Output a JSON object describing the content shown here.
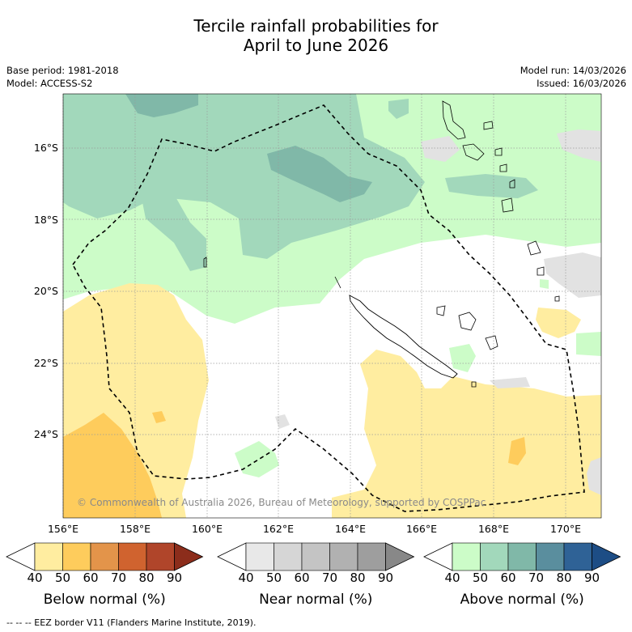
{
  "title": {
    "line1": "Tercile rainfall probabilities for",
    "line2": "April to June 2026"
  },
  "meta": {
    "base_period": "Base period: 1981-2018",
    "model": "Model: ACCESS-S2",
    "model_run": "Model run: 14/03/2026",
    "issued": "Issued: 16/03/2026"
  },
  "map": {
    "lat_labels": [
      "16°S",
      "18°S",
      "20°S",
      "22°S",
      "24°S"
    ],
    "lon_labels": [
      "156°E",
      "158°E",
      "160°E",
      "162°E",
      "164°E",
      "166°E",
      "168°E",
      "170°E"
    ],
    "copyright": "© Commonwealth of Australia 2026, Bureau of Meteorology, supported by COSPPac"
  },
  "colorbars": [
    {
      "title": "Below normal (%)",
      "ticks": [
        "40",
        "50",
        "60",
        "70",
        "80",
        "90"
      ],
      "colors": [
        "#ffeda0",
        "#fecc5c",
        "#e3944a",
        "#d0632f",
        "#b0452a",
        "#8c2d1b"
      ]
    },
    {
      "title": "Near normal (%)",
      "ticks": [
        "40",
        "50",
        "60",
        "70",
        "80",
        "90"
      ],
      "colors": [
        "#e8e8e8",
        "#d6d6d6",
        "#c4c4c4",
        "#b1b1b1",
        "#9e9e9e",
        "#888888"
      ]
    },
    {
      "title": "Above normal (%)",
      "ticks": [
        "40",
        "50",
        "60",
        "70",
        "80",
        "90"
      ],
      "colors": [
        "#ccfcc8",
        "#a2d8bb",
        "#80b8a8",
        "#5a8e9e",
        "#2f6296",
        "#1d4d85"
      ]
    }
  ],
  "footer": "-- -- -- EEZ border V11 (Flanders Marine Institute, 2019)."
}
